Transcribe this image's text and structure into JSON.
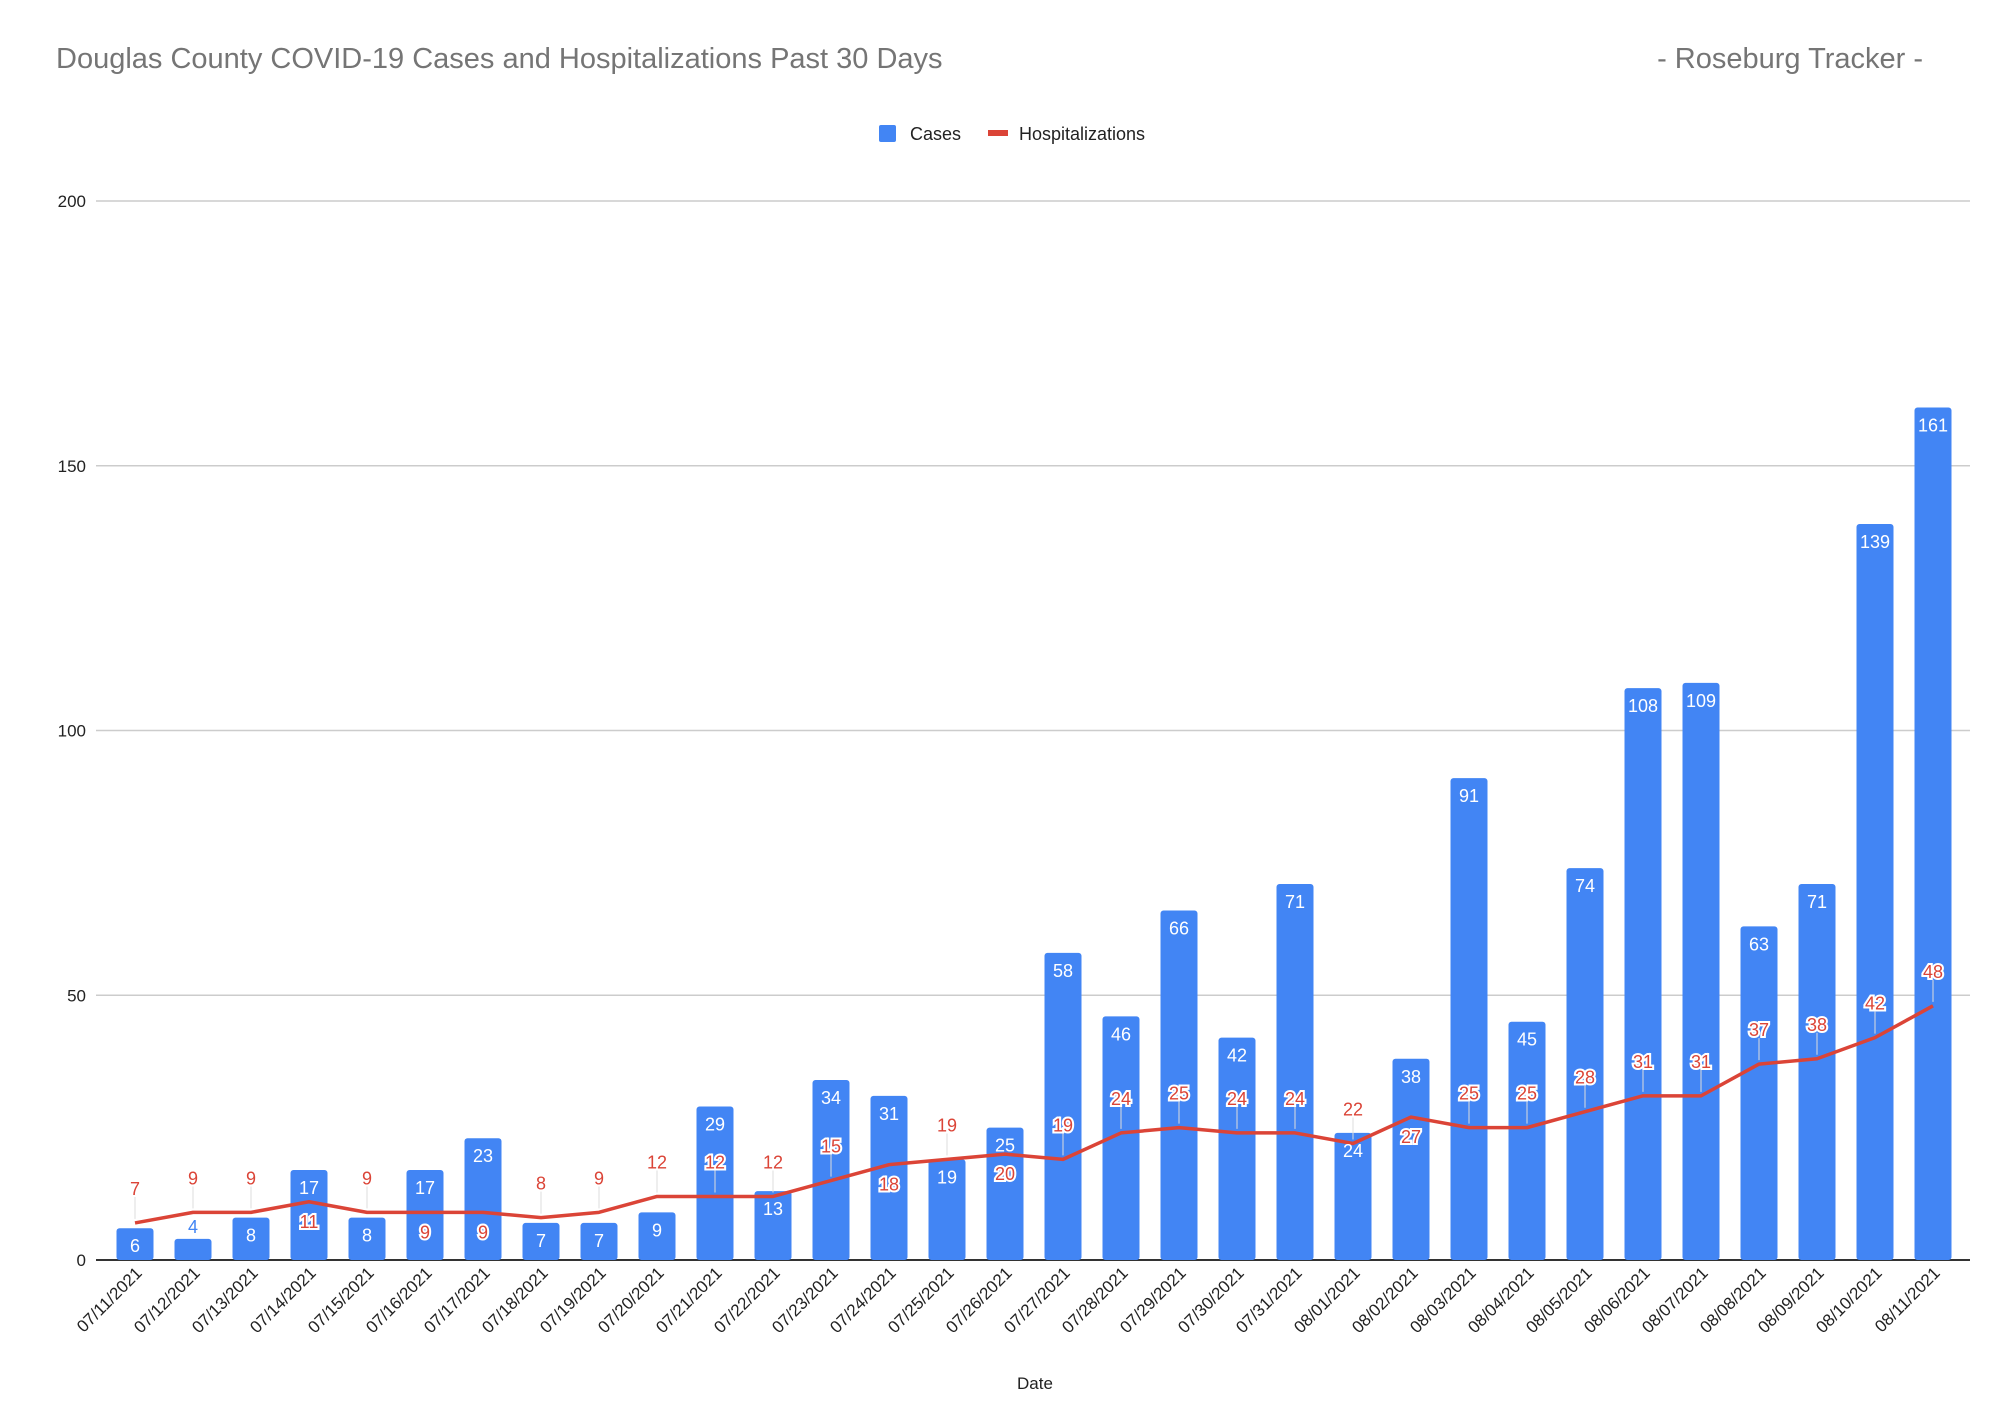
{
  "chart_data": {
    "type": "bar",
    "title": "Douglas County COVID-19 Cases and Hospitalizations Past 30 Days",
    "subtitle": "- Roseburg Tracker -",
    "xlabel": "Date",
    "ylabel": "",
    "ylim": [
      0,
      200
    ],
    "yticks": [
      0,
      50,
      100,
      150,
      200
    ],
    "grid": true,
    "legend_position": "top-center",
    "colors": {
      "cases": "#4285f4",
      "hospitalizations": "#db4437"
    },
    "categories": [
      "07/11/2021",
      "07/12/2021",
      "07/13/2021",
      "07/14/2021",
      "07/15/2021",
      "07/16/2021",
      "07/17/2021",
      "07/18/2021",
      "07/19/2021",
      "07/20/2021",
      "07/21/2021",
      "07/22/2021",
      "07/23/2021",
      "07/24/2021",
      "07/25/2021",
      "07/26/2021",
      "07/27/2021",
      "07/28/2021",
      "07/29/2021",
      "07/30/2021",
      "07/31/2021",
      "08/01/2021",
      "08/02/2021",
      "08/03/2021",
      "08/04/2021",
      "08/05/2021",
      "08/06/2021",
      "08/07/2021",
      "08/08/2021",
      "08/09/2021",
      "08/10/2021",
      "08/11/2021"
    ],
    "series": [
      {
        "name": "Cases",
        "type": "bar",
        "values": [
          6,
          4,
          8,
          17,
          8,
          17,
          23,
          7,
          7,
          9,
          29,
          13,
          34,
          31,
          19,
          25,
          58,
          46,
          66,
          42,
          71,
          24,
          38,
          91,
          45,
          74,
          108,
          109,
          63,
          71,
          139,
          161
        ]
      },
      {
        "name": "Hospitalizations",
        "type": "line",
        "values": [
          7,
          9,
          9,
          11,
          9,
          9,
          9,
          8,
          9,
          12,
          12,
          12,
          15,
          18,
          19,
          20,
          19,
          24,
          25,
          24,
          24,
          22,
          27,
          25,
          25,
          28,
          31,
          31,
          37,
          38,
          42,
          48
        ]
      }
    ]
  }
}
